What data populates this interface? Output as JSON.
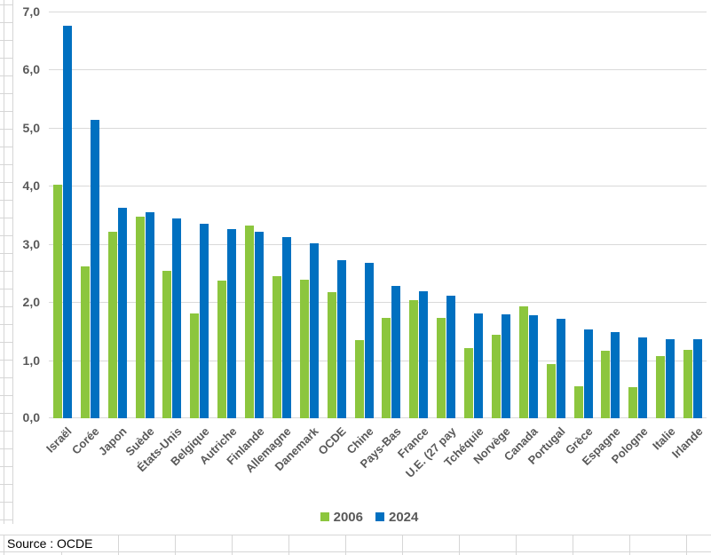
{
  "source": {
    "label": "Source : OCDE"
  },
  "legend": {
    "items": [
      "2006",
      "2024"
    ]
  },
  "colors": {
    "series_2006": "#8cc63e",
    "series_2024": "#0070c0",
    "grid": "#d9d9d9",
    "axis_text": "#595959",
    "sheet_grid": "#d6d6d6"
  },
  "chart_data": {
    "type": "bar",
    "categories": [
      "Israël",
      "Corée",
      "Japon",
      "Suède",
      "États-Unis",
      "Belgique",
      "Autriche",
      "Finlande",
      "Allemagne",
      "Danemark",
      "OCDE",
      "Chine",
      "Pays-Bas",
      "France",
      "U.E. (27 pay",
      "Tchéquie",
      "Norvège",
      "Canada",
      "Portugal",
      "Grèce",
      "Espagne",
      "Pologne",
      "Italie",
      "Irlande"
    ],
    "series": [
      {
        "name": "2006",
        "color": "#8cc63e",
        "values": [
          4.02,
          2.61,
          3.21,
          3.47,
          2.54,
          1.81,
          2.37,
          3.32,
          2.44,
          2.38,
          2.17,
          1.34,
          1.72,
          2.04,
          1.72,
          1.2,
          1.43,
          1.92,
          0.93,
          0.55,
          1.16,
          0.54,
          1.07,
          1.18
        ]
      },
      {
        "name": "2024",
        "color": "#0070c0",
        "values": [
          6.76,
          5.14,
          3.62,
          3.55,
          3.44,
          3.35,
          3.26,
          3.21,
          3.12,
          3.01,
          2.72,
          2.68,
          2.28,
          2.18,
          2.11,
          1.81,
          1.79,
          1.77,
          1.71,
          1.53,
          1.48,
          1.39,
          1.36,
          1.36
        ]
      }
    ],
    "ylim": [
      0,
      7
    ],
    "yticks": [
      "0,0",
      "1,0",
      "2,0",
      "3,0",
      "4,0",
      "5,0",
      "6,0",
      "7,0"
    ],
    "grid": "horizontal",
    "legend_position": "bottom"
  }
}
